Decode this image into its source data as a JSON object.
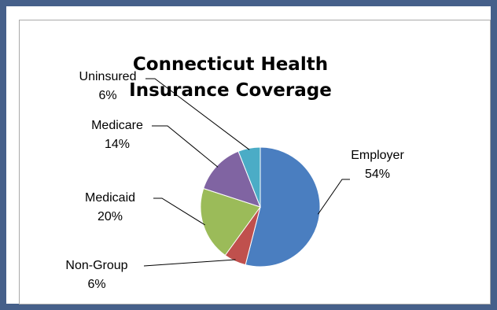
{
  "chart_data": {
    "type": "pie",
    "title": "Connecticut Health Insurance Coverage",
    "title_lines": [
      "Connecticut Health",
      "Insurance Coverage"
    ],
    "legend": "none",
    "categories": [
      "Employer",
      "Non-Group",
      "Medicaid",
      "Medicare",
      "Uninsured"
    ],
    "values": [
      54,
      6,
      20,
      14,
      6
    ],
    "value_labels": [
      "54%",
      "6%",
      "20%",
      "14%",
      "6%"
    ],
    "colors": [
      "#4a7ec0",
      "#c0504d",
      "#9bbb59",
      "#8064a2",
      "#4bacc6"
    ]
  }
}
